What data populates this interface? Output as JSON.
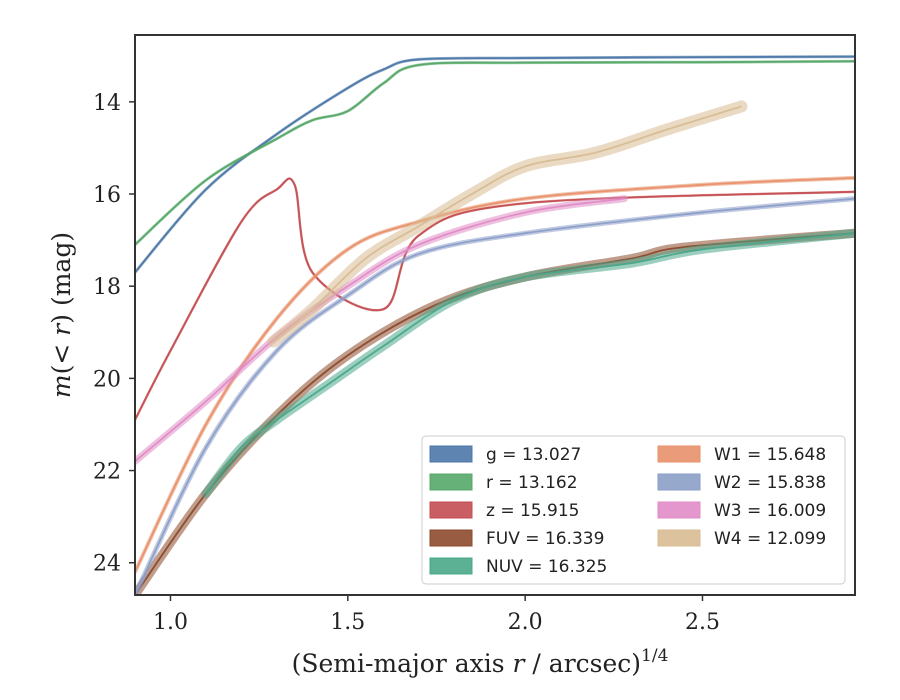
{
  "chart_data": {
    "type": "line",
    "xlabel": "(Semi-major axis r / arcsec)^{1/4}",
    "ylabel": "m(<r) (mag)",
    "xlim": [
      0.9,
      2.93
    ],
    "ylim": [
      24.7,
      12.55
    ],
    "xticks": [
      1.0,
      1.5,
      2.0,
      2.5
    ],
    "xtick_labels": [
      "1.0",
      "1.5",
      "2.0",
      "2.5"
    ],
    "yticks": [
      14,
      16,
      18,
      20,
      22,
      24
    ],
    "ytick_labels": [
      "14",
      "16",
      "18",
      "20",
      "22",
      "24"
    ],
    "grid": false,
    "legend_position": "lower-right",
    "series": [
      {
        "name": "g",
        "legend": "g = 13.027",
        "color": "#4c78a8",
        "x": [
          0.9,
          1.1,
          1.3,
          1.5,
          1.6,
          1.7,
          2.0,
          2.5,
          2.93
        ],
        "y": [
          17.7,
          15.9,
          14.7,
          13.7,
          13.3,
          13.08,
          13.05,
          13.03,
          13.02
        ]
      },
      {
        "name": "r",
        "legend": "r = 13.162",
        "color": "#55a868",
        "x": [
          0.9,
          1.1,
          1.3,
          1.4,
          1.5,
          1.6,
          1.7,
          2.0,
          2.5,
          2.93
        ],
        "y": [
          17.1,
          15.7,
          14.8,
          14.4,
          14.2,
          13.6,
          13.2,
          13.15,
          13.14,
          13.12
        ]
      },
      {
        "name": "z",
        "legend": "z = 15.915",
        "color": "#c44e52",
        "x": [
          0.9,
          1.0,
          1.2,
          1.3,
          1.35,
          1.4,
          1.6,
          1.7,
          2.0,
          2.93
        ],
        "y": [
          20.9,
          19.4,
          16.6,
          15.9,
          15.8,
          17.7,
          18.5,
          16.9,
          16.2,
          15.95
        ]
      },
      {
        "name": "FUV",
        "legend": "FUV = 16.339",
        "color": "#8c4a2c",
        "x": [
          0.9,
          1.1,
          1.3,
          1.5,
          1.75,
          2.0,
          2.3,
          2.45,
          2.93
        ],
        "y": [
          24.7,
          22.5,
          20.8,
          19.5,
          18.4,
          17.8,
          17.4,
          17.15,
          16.85
        ]
      },
      {
        "name": "NUV",
        "legend": "NUV = 16.325",
        "color": "#4aa88a",
        "x": [
          1.1,
          1.2,
          1.3,
          1.45,
          1.6,
          1.8,
          2.0,
          2.3,
          2.5,
          2.93
        ],
        "y": [
          22.5,
          21.5,
          20.9,
          20.1,
          19.3,
          18.3,
          17.8,
          17.5,
          17.2,
          16.85
        ]
      },
      {
        "name": "W1",
        "legend": "W1 = 15.648",
        "color": "#e8906a",
        "x": [
          0.9,
          1.1,
          1.3,
          1.5,
          1.7,
          2.0,
          2.5,
          2.93
        ],
        "y": [
          24.2,
          21.0,
          18.7,
          17.2,
          16.6,
          16.1,
          15.8,
          15.65
        ]
      },
      {
        "name": "W2",
        "legend": "W2 = 15.838",
        "color": "#8c9ec8",
        "x": [
          0.9,
          1.1,
          1.3,
          1.5,
          1.7,
          2.0,
          2.5,
          2.93
        ],
        "y": [
          24.7,
          21.5,
          19.4,
          18.2,
          17.3,
          16.85,
          16.4,
          16.1
        ]
      },
      {
        "name": "W3",
        "legend": "W3 = 16.009",
        "color": "#e08cc6",
        "x": [
          0.9,
          1.1,
          1.3,
          1.5,
          1.7,
          2.0,
          2.28
        ],
        "y": [
          21.8,
          20.5,
          19.1,
          18.0,
          17.1,
          16.4,
          16.1
        ]
      },
      {
        "name": "W4",
        "legend": "W4 = 12.099",
        "color": "#d8bc92",
        "x": [
          1.29,
          1.4,
          1.55,
          1.7,
          1.85,
          2.0,
          2.2,
          2.4,
          2.61
        ],
        "y": [
          19.2,
          18.5,
          17.4,
          16.7,
          16.0,
          15.4,
          15.1,
          14.6,
          14.1
        ]
      }
    ]
  }
}
